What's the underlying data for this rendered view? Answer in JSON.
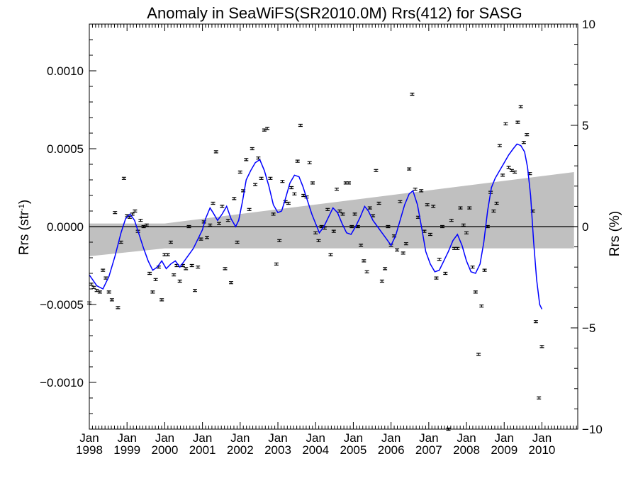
{
  "chart_data": {
    "type": "scatter",
    "title": "Anomaly in SeaWiFS(SR2010.0M) Rrs(412) for SASG",
    "ylabel_left_main": "Rrs (str",
    "ylabel_left_sup": "-1",
    "ylabel_left_close": ")",
    "ylabel_right": "Rrs (%)",
    "xlim": [
      1998.0,
      2010.95
    ],
    "ylim_left": [
      -0.0013,
      0.0013
    ],
    "ylim_right": [
      -10,
      10
    ],
    "x_ticks": [
      {
        "value": 1998,
        "month": "Jan",
        "year": "1998"
      },
      {
        "value": 1999,
        "month": "Jan",
        "year": "1999"
      },
      {
        "value": 2000,
        "month": "Jan",
        "year": "2000"
      },
      {
        "value": 2001,
        "month": "Jan",
        "year": "2001"
      },
      {
        "value": 2002,
        "month": "Jan",
        "year": "2002"
      },
      {
        "value": 2003,
        "month": "Jan",
        "year": "2003"
      },
      {
        "value": 2004,
        "month": "Jan",
        "year": "2004"
      },
      {
        "value": 2005,
        "month": "Jan",
        "year": "2005"
      },
      {
        "value": 2006,
        "month": "Jan",
        "year": "2006"
      },
      {
        "value": 2007,
        "month": "Jan",
        "year": "2007"
      },
      {
        "value": 2008,
        "month": "Jan",
        "year": "2008"
      },
      {
        "value": 2009,
        "month": "Jan",
        "year": "2009"
      },
      {
        "value": 2010,
        "month": "Jan",
        "year": "2010"
      }
    ],
    "y_ticks_left": [
      {
        "value": 0.001,
        "label": "0.0010"
      },
      {
        "value": 0.0005,
        "label": "0.0005"
      },
      {
        "value": 0.0,
        "label": "0.0000"
      },
      {
        "value": -0.0005,
        "label": "−0.0005"
      },
      {
        "value": -0.001,
        "label": "−0.0010"
      }
    ],
    "y_ticks_right": [
      {
        "value": 10,
        "label": "10"
      },
      {
        "value": 5,
        "label": "5"
      },
      {
        "value": 0,
        "label": "0"
      },
      {
        "value": -5,
        "label": "−5"
      },
      {
        "value": -10,
        "label": "−10"
      }
    ],
    "confidence_band": {
      "x": [
        1998.0,
        2000.0,
        2010.85
      ],
      "upper": [
        2e-05,
        2e-05,
        0.00035
      ],
      "lower": [
        -0.00019,
        -0.00014,
        -0.00014
      ]
    },
    "zero_line": 0.0,
    "points": [
      [
        1998.0,
        -0.00049
      ],
      [
        1998.05,
        -0.00037
      ],
      [
        1998.12,
        -0.00039
      ],
      [
        1998.2,
        -0.00041
      ],
      [
        1998.28,
        -0.00042
      ],
      [
        1998.36,
        -0.00028
      ],
      [
        1998.44,
        -0.00033
      ],
      [
        1998.52,
        -0.00042
      ],
      [
        1998.6,
        -0.00047
      ],
      [
        1998.68,
        9e-05
      ],
      [
        1998.76,
        -0.00052
      ],
      [
        1998.84,
        -0.0001
      ],
      [
        1998.92,
        0.00031
      ],
      [
        1999.0,
        7e-05
      ],
      [
        1999.07,
        6e-05
      ],
      [
        1999.14,
        8e-05
      ],
      [
        1999.21,
        0.0001
      ],
      [
        1999.29,
        -3e-05
      ],
      [
        1999.36,
        4e-05
      ],
      [
        1999.44,
        0.0
      ],
      [
        1999.52,
        1e-05
      ],
      [
        1999.6,
        -0.0003
      ],
      [
        1999.68,
        -0.00042
      ],
      [
        1999.76,
        -0.00034
      ],
      [
        1999.84,
        -0.00026
      ],
      [
        1999.92,
        -0.00047
      ],
      [
        2000.0,
        -0.00018
      ],
      [
        2000.08,
        -0.00018
      ],
      [
        2000.16,
        -0.0001
      ],
      [
        2000.24,
        -0.00031
      ],
      [
        2000.32,
        -0.00025
      ],
      [
        2000.4,
        -0.00035
      ],
      [
        2000.48,
        -0.00025
      ],
      [
        2000.56,
        -0.00027
      ],
      [
        2000.64,
        0.0
      ],
      [
        2000.72,
        -0.00025
      ],
      [
        2000.8,
        -0.00041
      ],
      [
        2000.88,
        -0.00026
      ],
      [
        2000.96,
        -8e-05
      ],
      [
        2001.04,
        3e-05
      ],
      [
        2001.12,
        -7e-05
      ],
      [
        2001.2,
        1e-05
      ],
      [
        2001.28,
        0.00015
      ],
      [
        2001.36,
        0.00048
      ],
      [
        2001.44,
        2e-05
      ],
      [
        2001.52,
        0.00013
      ],
      [
        2001.6,
        -0.00027
      ],
      [
        2001.68,
        4e-05
      ],
      [
        2001.76,
        -0.00036
      ],
      [
        2001.84,
        0.00018
      ],
      [
        2001.92,
        -0.0001
      ],
      [
        2002.0,
        0.00035
      ],
      [
        2002.08,
        0.00023
      ],
      [
        2002.16,
        0.00043
      ],
      [
        2002.24,
        0.00011
      ],
      [
        2002.32,
        0.0005
      ],
      [
        2002.4,
        0.00027
      ],
      [
        2002.48,
        0.00044
      ],
      [
        2002.56,
        0.00031
      ],
      [
        2002.64,
        0.00062
      ],
      [
        2002.72,
        0.00063
      ],
      [
        2002.8,
        0.00031
      ],
      [
        2002.88,
        8e-05
      ],
      [
        2002.96,
        -0.00024
      ],
      [
        2003.04,
        -9e-05
      ],
      [
        2003.12,
        0.00029
      ],
      [
        2003.2,
        0.00016
      ],
      [
        2003.28,
        0.00015
      ],
      [
        2003.36,
        0.00025
      ],
      [
        2003.44,
        0.00021
      ],
      [
        2003.52,
        0.00042
      ],
      [
        2003.6,
        0.00065
      ],
      [
        2003.68,
        0.0002
      ],
      [
        2003.76,
        0.00019
      ],
      [
        2003.84,
        0.00041
      ],
      [
        2003.92,
        0.00028
      ],
      [
        2004.0,
        -4e-05
      ],
      [
        2004.08,
        -9e-05
      ],
      [
        2004.16,
        0.0
      ],
      [
        2004.24,
        -1e-05
      ],
      [
        2004.32,
        0.00011
      ],
      [
        2004.4,
        -0.00018
      ],
      [
        2004.48,
        -3e-05
      ],
      [
        2004.56,
        0.00024
      ],
      [
        2004.64,
        0.0001
      ],
      [
        2004.72,
        8e-05
      ],
      [
        2004.8,
        0.00028
      ],
      [
        2004.88,
        0.00028
      ],
      [
        2004.96,
        0.0
      ],
      [
        2005.04,
        8e-05
      ],
      [
        2005.12,
        0.0
      ],
      [
        2005.2,
        -0.00012
      ],
      [
        2005.28,
        -0.00022
      ],
      [
        2005.36,
        -0.00029
      ],
      [
        2005.44,
        0.00012
      ],
      [
        2005.52,
        7e-05
      ],
      [
        2005.6,
        0.00036
      ],
      [
        2005.68,
        0.00015
      ],
      [
        2005.76,
        -0.00035
      ],
      [
        2005.84,
        -0.00027
      ],
      [
        2005.92,
        0.0
      ],
      [
        2006.0,
        -0.00012
      ],
      [
        2006.08,
        -6e-05
      ],
      [
        2006.16,
        -0.00015
      ],
      [
        2006.24,
        0.00016
      ],
      [
        2006.32,
        -0.00017
      ],
      [
        2006.4,
        -0.00011
      ],
      [
        2006.48,
        0.00037
      ],
      [
        2006.56,
        0.00085
      ],
      [
        2006.64,
        0.00024
      ],
      [
        2006.72,
        6e-05
      ],
      [
        2006.8,
        0.00023
      ],
      [
        2006.88,
        -3e-05
      ],
      [
        2006.96,
        0.00014
      ],
      [
        2007.04,
        -5e-05
      ],
      [
        2007.12,
        0.00013
      ],
      [
        2007.2,
        -0.00033
      ],
      [
        2007.28,
        -0.00021
      ],
      [
        2007.36,
        0.0
      ],
      [
        2007.44,
        -0.0003
      ],
      [
        2007.52,
        -0.0013
      ],
      [
        2007.6,
        4e-05
      ],
      [
        2007.68,
        -0.00014
      ],
      [
        2007.76,
        -0.00014
      ],
      [
        2007.84,
        0.00012
      ],
      [
        2007.92,
        1e-05
      ],
      [
        2008.0,
        -4e-05
      ],
      [
        2008.08,
        0.00012
      ],
      [
        2008.16,
        -0.00026
      ],
      [
        2008.24,
        -0.00042
      ],
      [
        2008.32,
        -0.00082
      ],
      [
        2008.4,
        -0.00051
      ],
      [
        2008.48,
        -0.00028
      ],
      [
        2008.56,
        0.0
      ],
      [
        2008.64,
        0.00022
      ],
      [
        2008.72,
        0.0001
      ],
      [
        2008.8,
        0.00015
      ],
      [
        2008.88,
        0.00052
      ],
      [
        2008.96,
        0.00033
      ],
      [
        2009.04,
        0.00066
      ],
      [
        2009.12,
        0.00038
      ],
      [
        2009.2,
        0.00036
      ],
      [
        2009.28,
        0.00035
      ],
      [
        2009.36,
        0.00067
      ],
      [
        2009.44,
        0.00077
      ],
      [
        2009.52,
        0.00054
      ],
      [
        2009.6,
        0.00059
      ],
      [
        2009.68,
        0.00034
      ],
      [
        2009.76,
        0.0001
      ],
      [
        2009.84,
        -0.00061
      ],
      [
        2009.92,
        -0.0011
      ],
      [
        2010.0,
        -0.00077
      ]
    ],
    "smooth_curve": {
      "color": "#0000ff",
      "points": [
        [
          1998.0,
          -0.00031
        ],
        [
          1998.2,
          -0.00038
        ],
        [
          1998.36,
          -0.0004
        ],
        [
          1998.52,
          -0.00032
        ],
        [
          1998.68,
          -0.00019
        ],
        [
          1998.84,
          -4e-05
        ],
        [
          1998.96,
          5e-05
        ],
        [
          1999.08,
          8e-05
        ],
        [
          1999.2,
          4e-05
        ],
        [
          1999.32,
          -5e-05
        ],
        [
          1999.44,
          -0.00014
        ],
        [
          1999.56,
          -0.00022
        ],
        [
          1999.68,
          -0.00028
        ],
        [
          1999.8,
          -0.00026
        ],
        [
          1999.92,
          -0.00022
        ],
        [
          2000.04,
          -0.00027
        ],
        [
          2000.16,
          -0.00024
        ],
        [
          2000.28,
          -0.00022
        ],
        [
          2000.4,
          -0.00026
        ],
        [
          2000.52,
          -0.00022
        ],
        [
          2000.64,
          -0.00018
        ],
        [
          2000.76,
          -0.00014
        ],
        [
          2000.88,
          -8e-05
        ],
        [
          2001.0,
          -2e-05
        ],
        [
          2001.08,
          5e-05
        ],
        [
          2001.2,
          0.00012
        ],
        [
          2001.28,
          9e-05
        ],
        [
          2001.4,
          4e-05
        ],
        [
          2001.52,
          8e-05
        ],
        [
          2001.64,
          0.00013
        ],
        [
          2001.76,
          5e-05
        ],
        [
          2001.88,
          0.0
        ],
        [
          2001.96,
          4e-05
        ],
        [
          2002.06,
          0.00016
        ],
        [
          2002.16,
          0.0003
        ],
        [
          2002.28,
          0.00036
        ],
        [
          2002.4,
          0.00041
        ],
        [
          2002.52,
          0.00043
        ],
        [
          2002.64,
          0.00036
        ],
        [
          2002.76,
          0.00026
        ],
        [
          2002.88,
          0.00014
        ],
        [
          2003.0,
          9e-05
        ],
        [
          2003.1,
          0.0001
        ],
        [
          2003.2,
          0.00018
        ],
        [
          2003.32,
          0.00028
        ],
        [
          2003.44,
          0.00033
        ],
        [
          2003.56,
          0.00032
        ],
        [
          2003.66,
          0.00026
        ],
        [
          2003.78,
          0.00017
        ],
        [
          2003.9,
          8e-05
        ],
        [
          2004.0,
          2e-05
        ],
        [
          2004.1,
          -4e-05
        ],
        [
          2004.22,
          0.0
        ],
        [
          2004.34,
          6e-05
        ],
        [
          2004.46,
          0.00012
        ],
        [
          2004.58,
          9e-05
        ],
        [
          2004.7,
          2e-05
        ],
        [
          2004.82,
          -4e-05
        ],
        [
          2004.94,
          -5e-05
        ],
        [
          2005.06,
          0.0
        ],
        [
          2005.18,
          6e-05
        ],
        [
          2005.3,
          0.00013
        ],
        [
          2005.4,
          0.0001
        ],
        [
          2005.52,
          4e-05
        ],
        [
          2005.64,
          0.0
        ],
        [
          2005.76,
          -4e-05
        ],
        [
          2005.88,
          -8e-05
        ],
        [
          2006.0,
          -0.00012
        ],
        [
          2006.12,
          -6e-05
        ],
        [
          2006.24,
          4e-05
        ],
        [
          2006.36,
          0.00014
        ],
        [
          2006.48,
          0.00021
        ],
        [
          2006.58,
          0.00023
        ],
        [
          2006.7,
          0.00014
        ],
        [
          2006.82,
          -2e-05
        ],
        [
          2006.92,
          -0.00016
        ],
        [
          2007.04,
          -0.00024
        ],
        [
          2007.16,
          -0.00029
        ],
        [
          2007.28,
          -0.00028
        ],
        [
          2007.4,
          -0.00022
        ],
        [
          2007.52,
          -0.00016
        ],
        [
          2007.64,
          -9e-05
        ],
        [
          2007.76,
          -5e-05
        ],
        [
          2007.88,
          -0.00012
        ],
        [
          2008.0,
          -0.00022
        ],
        [
          2008.12,
          -0.00029
        ],
        [
          2008.24,
          -0.0003
        ],
        [
          2008.36,
          -0.00024
        ],
        [
          2008.46,
          -0.0001
        ],
        [
          2008.56,
          0.0001
        ],
        [
          2008.66,
          0.00025
        ],
        [
          2008.76,
          0.00031
        ],
        [
          2008.88,
          0.00036
        ],
        [
          2009.0,
          0.00041
        ],
        [
          2009.12,
          0.00046
        ],
        [
          2009.24,
          0.0005
        ],
        [
          2009.34,
          0.00053
        ],
        [
          2009.44,
          0.00052
        ],
        [
          2009.54,
          0.00048
        ],
        [
          2009.62,
          0.00038
        ],
        [
          2009.7,
          0.0002
        ],
        [
          2009.78,
          -0.0001
        ],
        [
          2009.86,
          -0.00034
        ],
        [
          2009.94,
          -0.0005
        ],
        [
          2010.0,
          -0.00053
        ]
      ]
    }
  }
}
